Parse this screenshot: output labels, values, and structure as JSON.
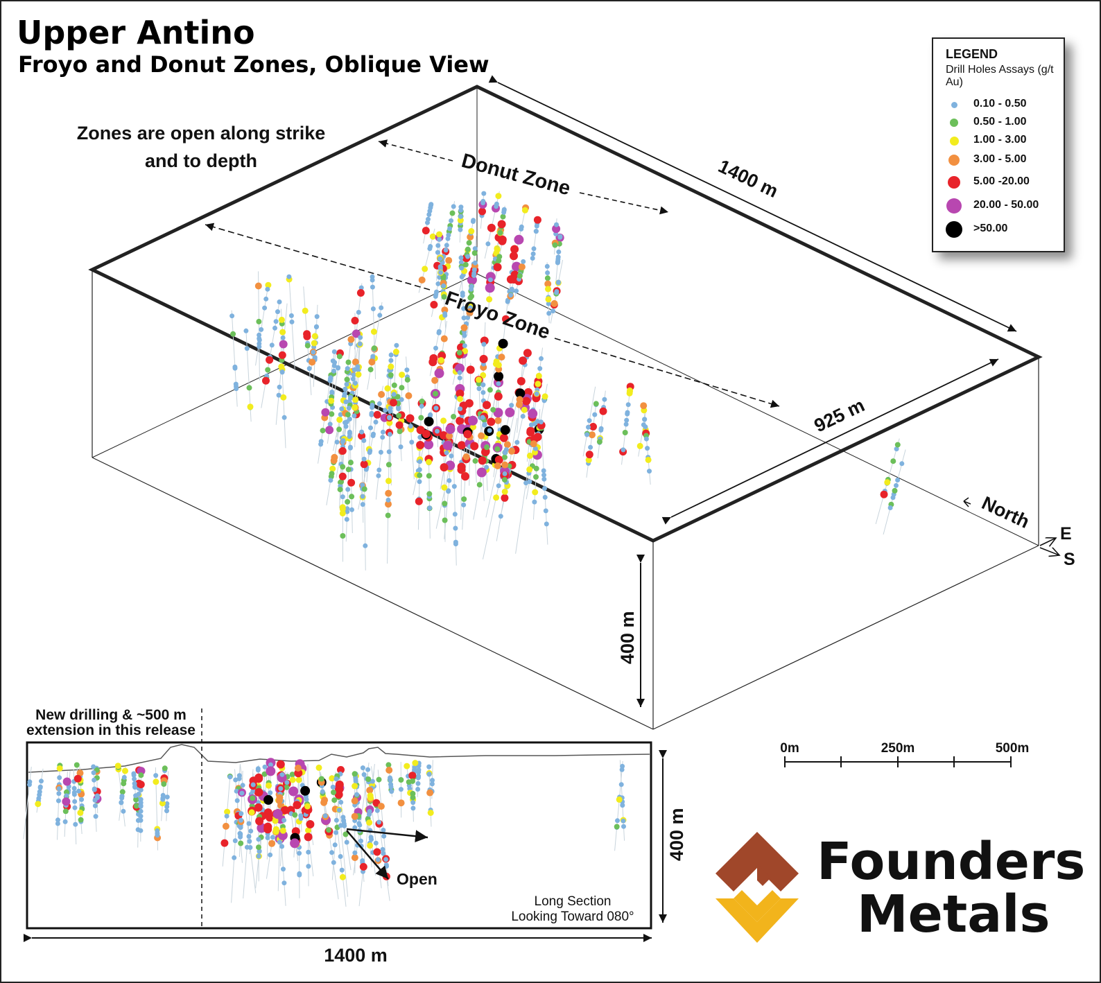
{
  "title": "Upper Antino",
  "subtitle": "Froyo and Donut Zones, Oblique View",
  "annotations": {
    "open_note_line1": "Zones are open along strike",
    "open_note_line2": "and to depth",
    "donut_zone": "Donut Zone",
    "froyo_zone": "Froyo Zone",
    "length_1400": "1400 m",
    "width_925": "925 m",
    "depth_400": "400 m",
    "north": "North",
    "east": "E",
    "south": "S"
  },
  "legend": {
    "title": "LEGEND",
    "subtitle": "Drill Holes Assays (g/t Au)",
    "items": [
      {
        "label": "0.10 - 0.50",
        "color": "#7fb2de"
      },
      {
        "label": "0.50 - 1.00",
        "color": "#6cbf5a"
      },
      {
        "label": "1.00 - 3.00",
        "color": "#f2ec1e"
      },
      {
        "label": "3.00 - 5.00",
        "color": "#f29040"
      },
      {
        "label": "5.00 -20.00",
        "color": "#e8232a"
      },
      {
        "label": "20.00 - 50.00",
        "color": "#b847b0"
      },
      {
        "label": ">50.00",
        "color": "#000000"
      }
    ]
  },
  "scale_bar": {
    "labels": [
      "0m",
      "250m",
      "500m"
    ]
  },
  "long_section": {
    "note_line1": "New drilling & ~500 m",
    "note_line2": "extension in this release",
    "open_label": "Open",
    "caption_line1": "Long Section",
    "caption_line2": "Looking Toward 080°",
    "depth_label": "400 m",
    "length_label": "1400 m"
  },
  "logo": {
    "line1": "Founders",
    "line2": "Metals",
    "color_top": "#a0472a",
    "color_bottom": "#f2b41c"
  }
}
